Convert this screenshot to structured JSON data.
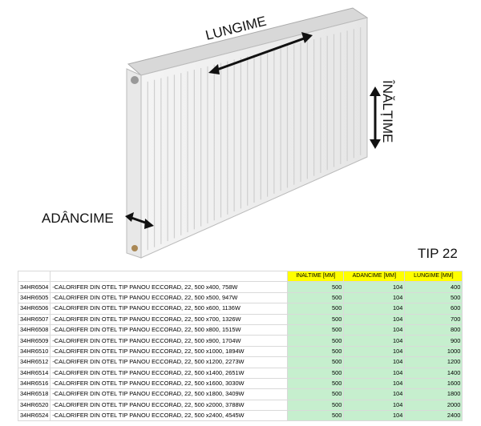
{
  "labels": {
    "length": "LUNGIME",
    "height": "ÎNĂLȚIME",
    "depth": "ADÂNCIME",
    "type": "TIP 22"
  },
  "table": {
    "header": [
      "INALTIME [MM]",
      "ADANCIME [MM]",
      "LUNGIME [MM]"
    ],
    "rows": [
      [
        "34HR6504",
        "-CALORIFER DIN OTEL TIP PANOU ECCORAD, 22, 500 x400, 758W",
        500,
        104,
        400
      ],
      [
        "34HR6505",
        "-CALORIFER DIN OTEL TIP PANOU ECCORAD, 22, 500 x500, 947W",
        500,
        104,
        500
      ],
      [
        "34HR6506",
        "-CALORIFER DIN OTEL TIP PANOU ECCORAD, 22, 500 x600, 1136W",
        500,
        104,
        600
      ],
      [
        "34HR6507",
        "-CALORIFER DIN OTEL TIP PANOU ECCORAD, 22, 500 x700, 1326W",
        500,
        104,
        700
      ],
      [
        "34HR6508",
        "-CALORIFER DIN OTEL TIP PANOU ECCORAD, 22, 500 x800, 1515W",
        500,
        104,
        800
      ],
      [
        "34HR6509",
        "-CALORIFER DIN OTEL TIP PANOU ECCORAD, 22, 500 x900, 1704W",
        500,
        104,
        900
      ],
      [
        "34HR6510",
        "-CALORIFER DIN OTEL TIP PANOU ECCORAD, 22, 500 x1000, 1894W",
        500,
        104,
        1000
      ],
      [
        "34HR6512",
        "-CALORIFER DIN OTEL TIP PANOU ECCORAD, 22, 500 x1200, 2273W",
        500,
        104,
        1200
      ],
      [
        "34HR6514",
        "-CALORIFER DIN OTEL TIP PANOU ECCORAD, 22, 500 x1400, 2651W",
        500,
        104,
        1400
      ],
      [
        "34HR6516",
        "-CALORIFER DIN OTEL TIP PANOU ECCORAD, 22, 500 x1600, 3030W",
        500,
        104,
        1600
      ],
      [
        "34HR6518",
        "-CALORIFER DIN OTEL TIP PANOU ECCORAD, 22, 500 x1800, 3409W",
        500,
        104,
        1800
      ],
      [
        "34HR6520",
        "-CALORIFER DIN OTEL TIP PANOU ECCORAD, 22, 500 x2000, 3788W",
        500,
        104,
        2000
      ],
      [
        "34HR6524",
        "-CALORIFER DIN OTEL TIP PANOU ECCORAD, 22, 500 x2400, 4545W",
        500,
        104,
        2400
      ]
    ]
  }
}
